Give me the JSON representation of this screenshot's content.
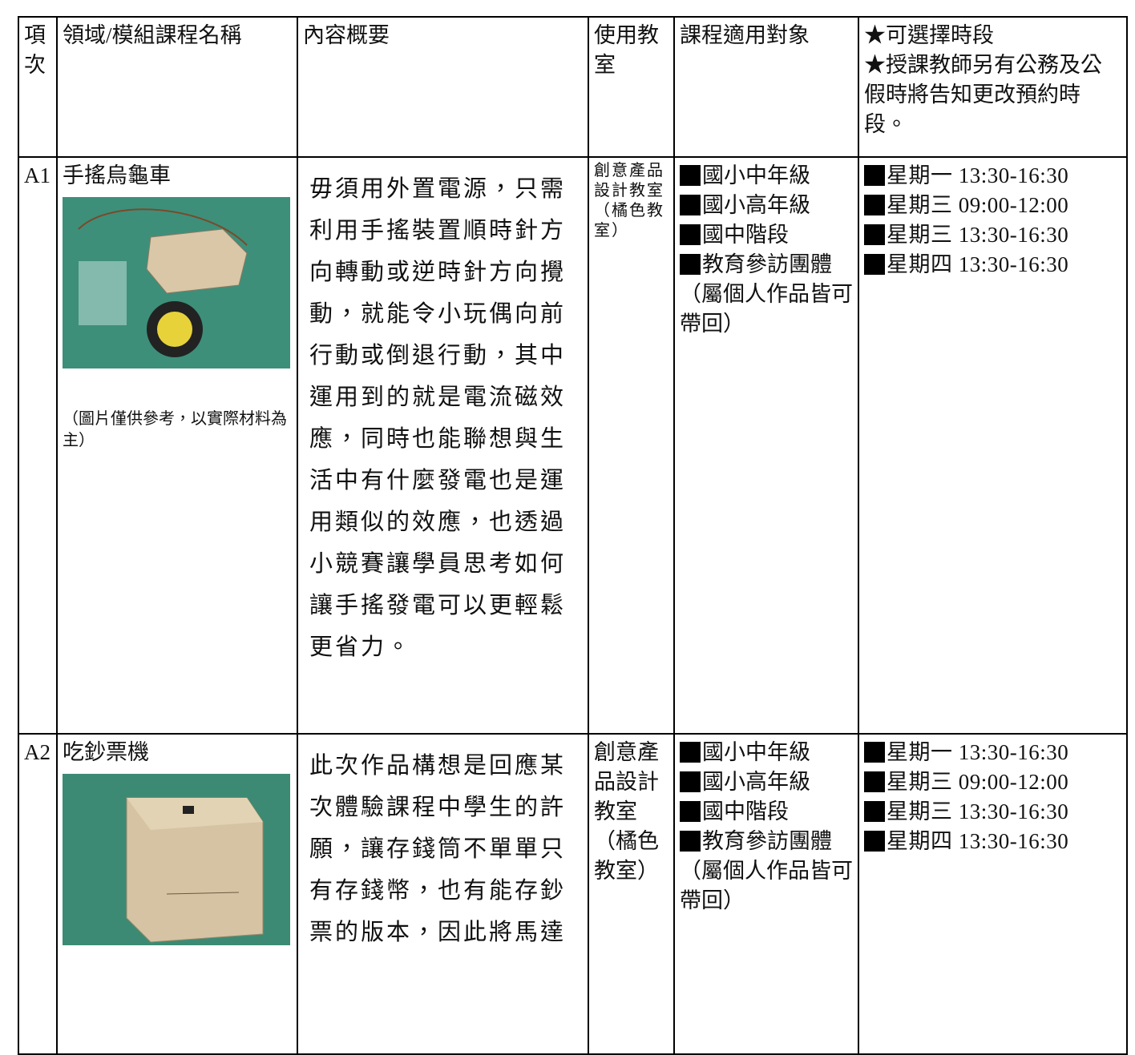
{
  "header": {
    "columns": [
      "項次",
      "領域/模組課程名稱",
      "內容概要",
      "使用教室",
      "課程適用對象"
    ],
    "time_notes": [
      "★可選擇時段",
      "★授課教師另有公務及公假時將告知更改預約時段。"
    ]
  },
  "rows": [
    {
      "id": "A1",
      "name": "手搖烏龜車",
      "caption": "（圖片僅供參考，以實際材料為主）",
      "description": "毋須用外置電源，只需利用手搖裝置順時針方向轉動或逆時針方向攪動，就能令小玩偶向前行動或倒退行動，其中運用到的就是電流磁效應，同時也能聯想與生活中有什麼發電也是運用類似的效應，也透過小競賽讓學員思考如何讓手搖發電可以更輕鬆更省力。",
      "classroom": "創意產品設計教室（橘色教室）",
      "audiences": [
        "國小中年級",
        "國小高年級",
        "國中階段",
        "教育參訪團體"
      ],
      "audience_note": "（屬個人作品皆可帶回）",
      "times": [
        "星期一 13:30-16:30",
        "星期三 09:00-12:00",
        "星期三 13:30-16:30",
        "星期四 13:30-16:30"
      ]
    },
    {
      "id": "A2",
      "name": "吃鈔票機",
      "description": "此次作品構想是回應某次體驗課程中學生的許願，讓存錢筒不單單只有存錢幣，也有能存鈔票的版本，因此將馬達",
      "classroom": "創意產品設計教室（橘色教室）",
      "audiences": [
        "國小中年級",
        "國小高年級",
        "國中階段",
        "教育參訪團體"
      ],
      "audience_note": "（屬個人作品皆可帶回）",
      "times": [
        "星期一 13:30-16:30",
        "星期三 09:00-12:00",
        "星期三 13:30-16:30",
        "星期四 13:30-16:30"
      ]
    }
  ]
}
